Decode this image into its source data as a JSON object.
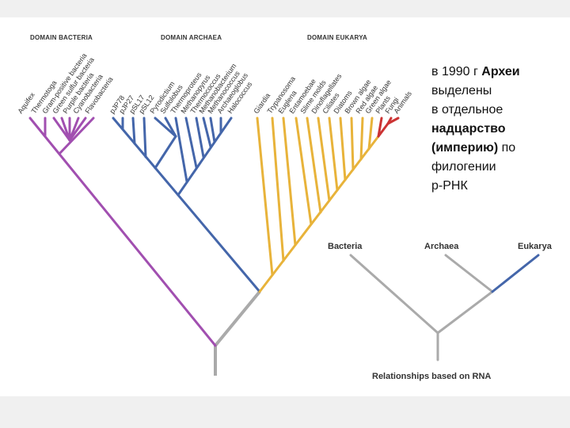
{
  "domains": {
    "bacteria": "DOMAIN BACTERIA",
    "archaea": "DOMAIN ARCHAEA",
    "eukarya": "DOMAIN EUKARYA"
  },
  "leaves": {
    "bacteria": [
      "Aquifex",
      "Thermotoga",
      "Gram-positive bacteria",
      "Green sulfur bacteria",
      "Purple bacteria",
      "Cyanobacteria",
      "Flavobacteria"
    ],
    "archaea": [
      "pJP78",
      "pJP27",
      "pSL17",
      "pSL12",
      "Pyrodictium",
      "Sulfolobus",
      "Thermoproteus",
      "Methanopyrus",
      "Thermococcus",
      "Methanobacterium",
      "Methanococcus",
      "Archaeoglobus",
      "Halococcus"
    ],
    "eukarya": [
      "Giardia",
      "Trypanosoma",
      "Euglena",
      "Entamoebae",
      "Slime molds",
      "Dinoflagellates",
      "Ciliates",
      "Diatoms",
      "Brown algae",
      "Red algae",
      "Green algae",
      "Plants",
      "Fungi",
      "Animals"
    ]
  },
  "caption": {
    "line1_pre": "в 1990 г ",
    "line1_bold": "Археи",
    "line2": "выделены",
    "line3": "в отдельное",
    "line4_bold": "надцарство",
    "line5_bold": "(империю)",
    "line5_post": " по",
    "line6": "филогении",
    "line7": "р-РНК"
  },
  "small_tree": {
    "bacteria": "Bacteria",
    "archaea": "Archaea",
    "eukarya": "Eukarya",
    "caption": "Relationships based on RNA"
  },
  "colors": {
    "bacteria": "#a14fb0",
    "archaea": "#4466aa",
    "eukarya": "#e8b33a",
    "animals": "#cc3333",
    "root": "#aaaaaa"
  }
}
